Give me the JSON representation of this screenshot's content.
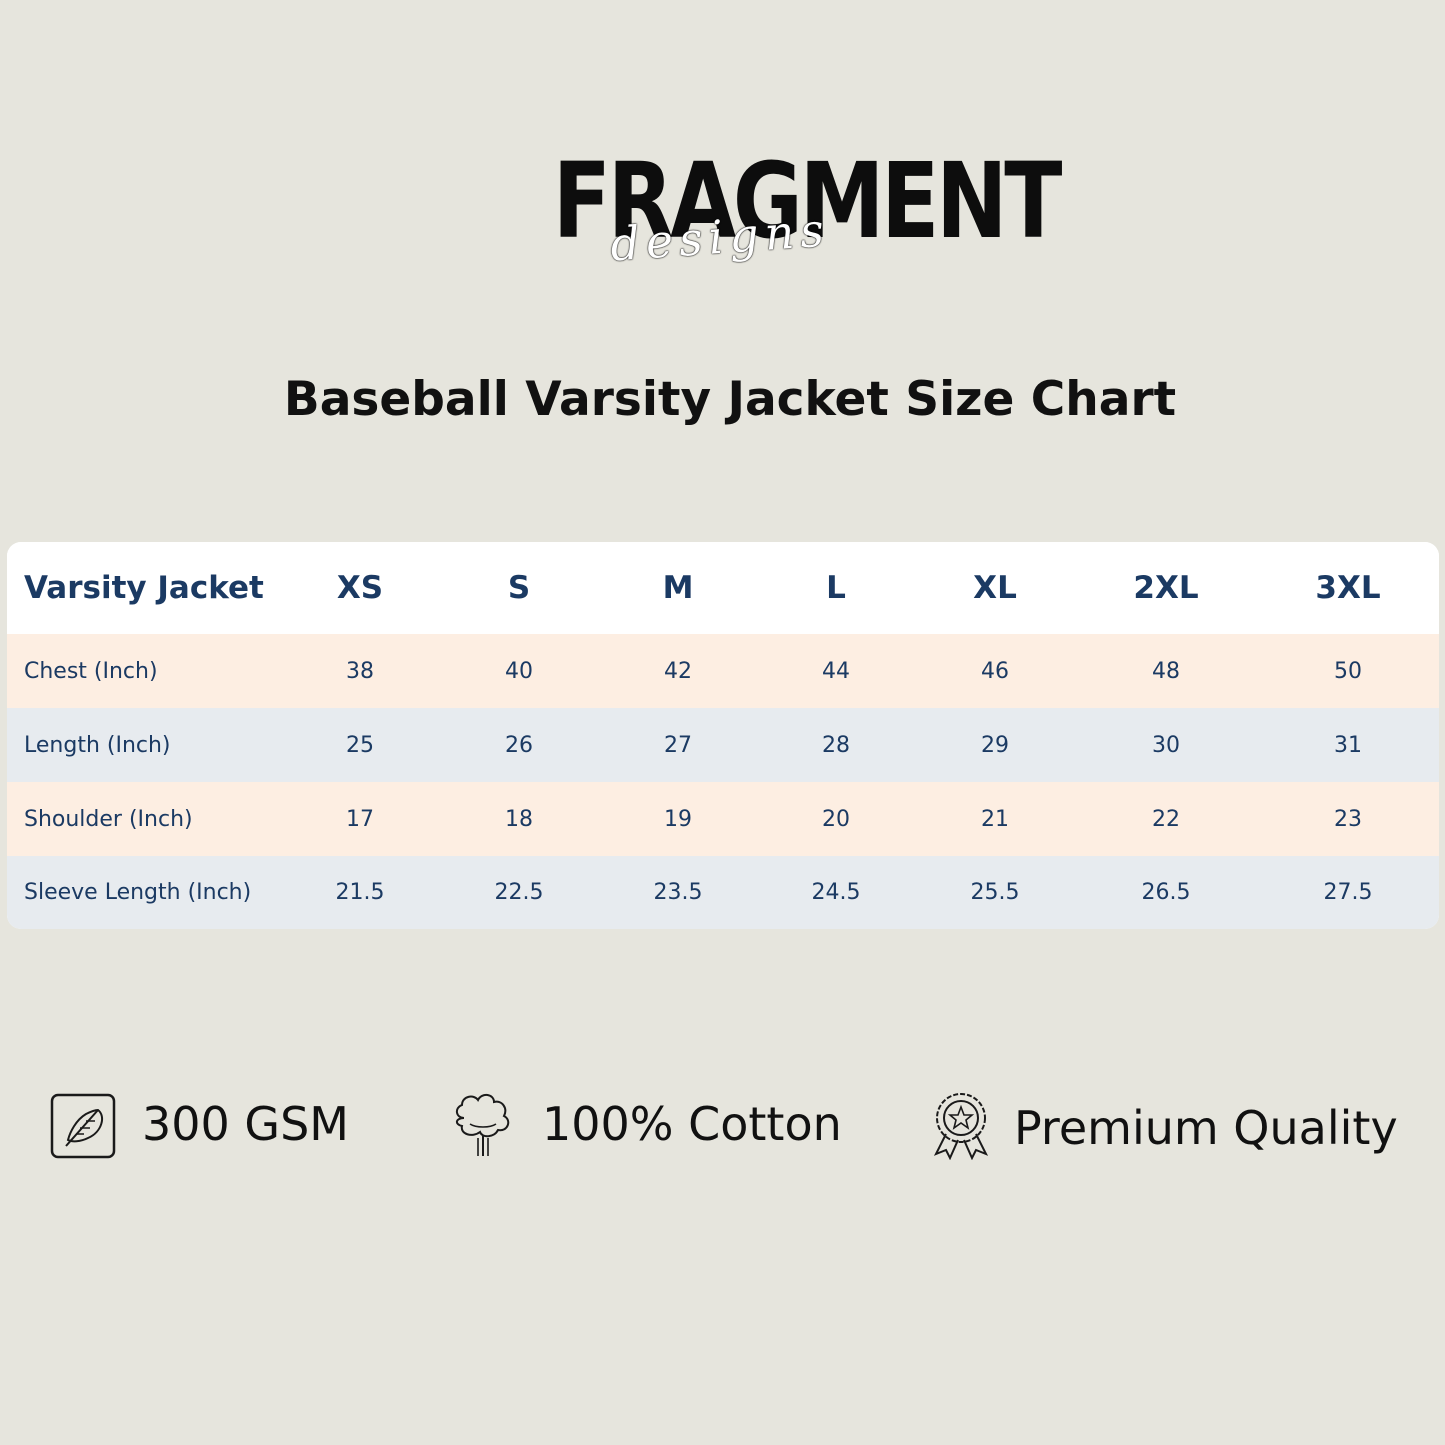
{
  "logo": {
    "main": "FRAGMENT",
    "script": "designs"
  },
  "title": "Baseball Varsity Jacket Size Chart",
  "size_table": {
    "header_label": "Varsity Jacket",
    "sizes": [
      "XS",
      "S",
      "M",
      "L",
      "XL",
      "2XL",
      "3XL"
    ],
    "rows": [
      {
        "label": "Chest (Inch)",
        "values": [
          "38",
          "40",
          "42",
          "44",
          "46",
          "48",
          "50"
        ]
      },
      {
        "label": "Length (Inch)",
        "values": [
          "25",
          "26",
          "27",
          "28",
          "29",
          "30",
          "31"
        ]
      },
      {
        "label": "Shoulder (Inch)",
        "values": [
          "17",
          "18",
          "19",
          "20",
          "21",
          "22",
          "23"
        ]
      },
      {
        "label": "Sleeve Length (Inch)",
        "values": [
          "21.5",
          "22.5",
          "23.5",
          "24.5",
          "25.5",
          "26.5",
          "27.5"
        ]
      }
    ]
  },
  "features": [
    {
      "icon": "feather-icon",
      "label": "300 GSM"
    },
    {
      "icon": "cotton-icon",
      "label": "100% Cotton"
    },
    {
      "icon": "award-badge-icon",
      "label": "Premium Quality"
    }
  ],
  "colors": {
    "background": "#e6e5dd",
    "text_navy": "#1b3a63",
    "row_peach": "#fdeee2",
    "row_blue": "#e7ebef"
  }
}
